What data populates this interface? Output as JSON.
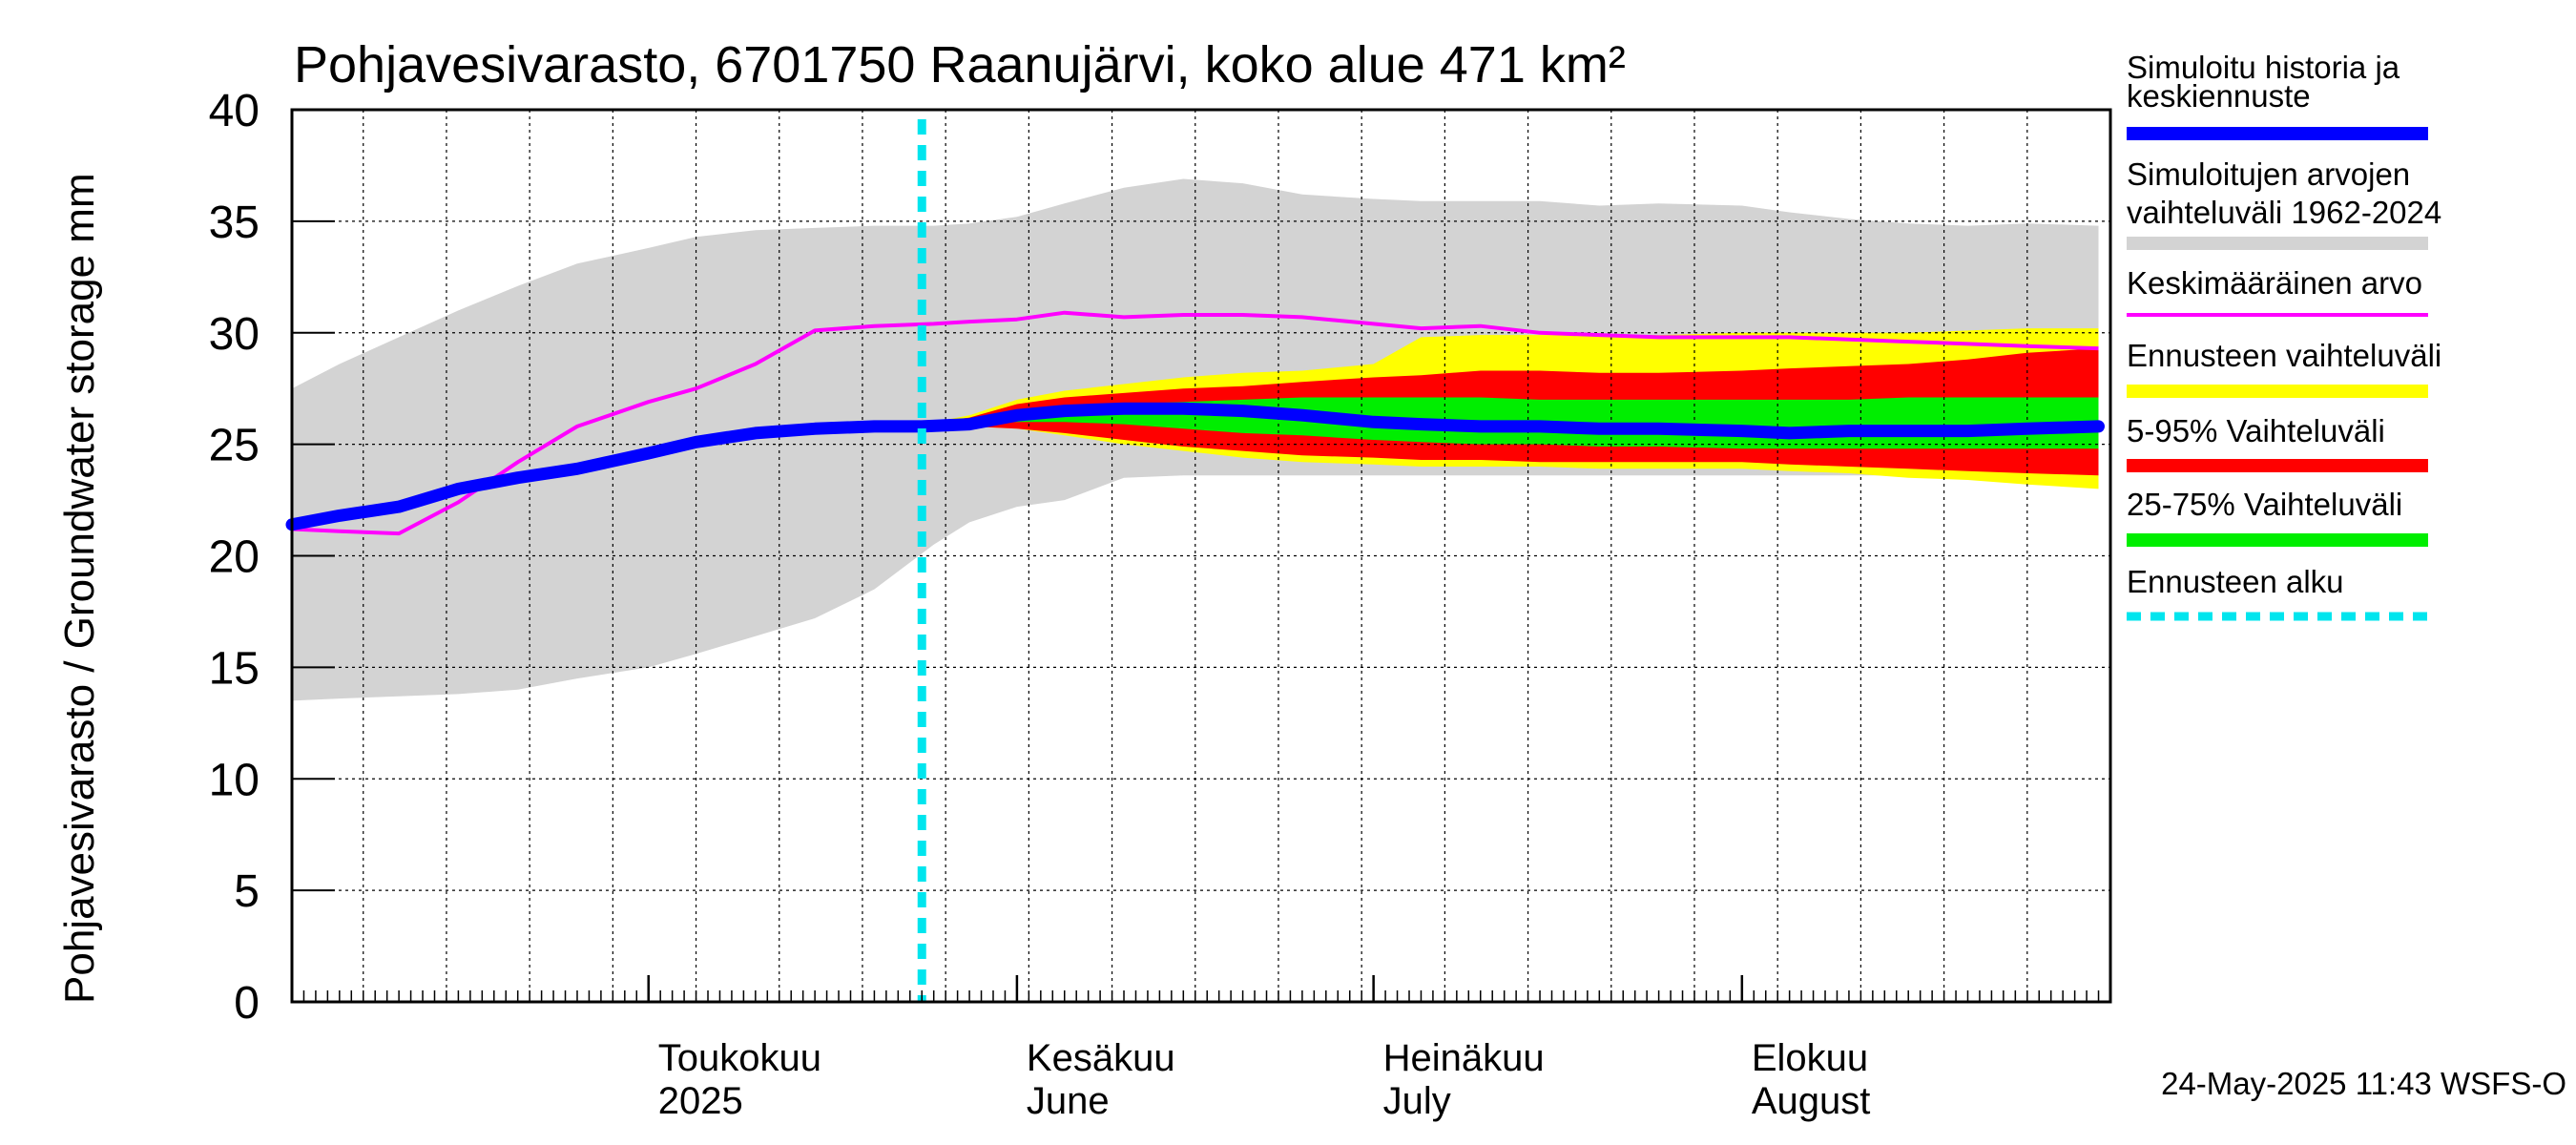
{
  "chart_data": {
    "type": "area",
    "title": "Pohjavesivarasto, 6701750 Raanujärvi, koko alue 471 km²",
    "ylabel": "Pohjavesivarasto / Groundwater storage   mm",
    "ylim": [
      0,
      40
    ],
    "yticks": [
      "0",
      "5",
      "10",
      "15",
      "20",
      "25",
      "30",
      "35",
      "40"
    ],
    "x_range": [
      "2025-04-01",
      "2025-08-31"
    ],
    "month_labels": [
      {
        "date": "2025-05-01",
        "line1": "Toukokuu",
        "line2": "2025"
      },
      {
        "date": "2025-06-01",
        "line1": "Kesäkuu",
        "line2": "June"
      },
      {
        "date": "2025-07-01",
        "line1": "Heinäkuu",
        "line2": "July"
      },
      {
        "date": "2025-08-01",
        "line1": "Elokuu",
        "line2": "August"
      }
    ],
    "forecast_start": "2025-05-24",
    "footer": "24-May-2025 11:43 WSFS-O",
    "series": [
      {
        "key": "range",
        "name": "Simuloitujen arvojen vaihteluväli 1962-2024",
        "kind": "band",
        "color": "#d3d3d3",
        "x": [
          "2025-04-01",
          "2025-04-05",
          "2025-04-10",
          "2025-04-15",
          "2025-04-20",
          "2025-04-25",
          "2025-05-01",
          "2025-05-05",
          "2025-05-10",
          "2025-05-15",
          "2025-05-20",
          "2025-05-25",
          "2025-05-28",
          "2025-06-01",
          "2025-06-05",
          "2025-06-10",
          "2025-06-15",
          "2025-06-20",
          "2025-06-25",
          "2025-07-01",
          "2025-07-05",
          "2025-07-10",
          "2025-07-15",
          "2025-07-20",
          "2025-07-25",
          "2025-08-01",
          "2025-08-05",
          "2025-08-10",
          "2025-08-15",
          "2025-08-20",
          "2025-08-25",
          "2025-08-31"
        ],
        "low": [
          13.5,
          13.6,
          13.7,
          13.8,
          14.0,
          14.5,
          15.0,
          15.6,
          16.4,
          17.2,
          18.5,
          20.5,
          21.5,
          22.2,
          22.5,
          23.5,
          23.6,
          23.6,
          23.6,
          23.6,
          23.6,
          23.6,
          23.6,
          23.6,
          23.6,
          23.6,
          23.6,
          23.6,
          23.6,
          23.6,
          23.6,
          23.6
        ],
        "high": [
          27.5,
          28.6,
          29.8,
          31.0,
          32.1,
          33.1,
          33.8,
          34.3,
          34.6,
          34.7,
          34.8,
          34.8,
          34.9,
          35.2,
          35.8,
          36.5,
          36.9,
          36.7,
          36.2,
          36.0,
          35.9,
          35.9,
          35.9,
          35.7,
          35.8,
          35.7,
          35.4,
          35.1,
          34.9,
          34.8,
          34.9,
          34.8
        ]
      },
      {
        "key": "forecast",
        "name": "Ennusteen vaihteluväli",
        "kind": "band",
        "color": "#ffff00",
        "x": [
          "2025-05-24",
          "2025-05-28",
          "2025-06-01",
          "2025-06-05",
          "2025-06-10",
          "2025-06-15",
          "2025-06-20",
          "2025-06-25",
          "2025-07-01",
          "2025-07-05",
          "2025-07-10",
          "2025-07-15",
          "2025-07-20",
          "2025-07-25",
          "2025-08-01",
          "2025-08-05",
          "2025-08-10",
          "2025-08-15",
          "2025-08-20",
          "2025-08-25",
          "2025-08-31"
        ],
        "low": [
          25.8,
          25.8,
          25.7,
          25.4,
          25.0,
          24.7,
          24.4,
          24.2,
          24.1,
          24.0,
          24.0,
          24.0,
          23.9,
          23.9,
          23.9,
          23.8,
          23.7,
          23.5,
          23.4,
          23.2,
          23.0
        ],
        "high": [
          25.9,
          26.3,
          27.0,
          27.4,
          27.7,
          28.0,
          28.2,
          28.3,
          28.6,
          29.8,
          29.9,
          29.9,
          29.9,
          29.9,
          30.0,
          30.0,
          30.0,
          30.0,
          30.1,
          30.2,
          30.2
        ]
      },
      {
        "key": "p5_95",
        "name": "5-95% Vaihteluväli",
        "kind": "band",
        "color": "#ff0000",
        "x": [
          "2025-05-24",
          "2025-05-28",
          "2025-06-01",
          "2025-06-05",
          "2025-06-10",
          "2025-06-15",
          "2025-06-20",
          "2025-06-25",
          "2025-07-01",
          "2025-07-05",
          "2025-07-10",
          "2025-07-15",
          "2025-07-20",
          "2025-07-25",
          "2025-08-01",
          "2025-08-05",
          "2025-08-10",
          "2025-08-15",
          "2025-08-20",
          "2025-08-25",
          "2025-08-31"
        ],
        "low": [
          25.8,
          25.8,
          25.7,
          25.5,
          25.2,
          24.9,
          24.7,
          24.5,
          24.4,
          24.3,
          24.3,
          24.2,
          24.2,
          24.2,
          24.2,
          24.1,
          24.0,
          23.9,
          23.8,
          23.7,
          23.6
        ],
        "high": [
          25.9,
          26.2,
          26.8,
          27.1,
          27.3,
          27.5,
          27.6,
          27.8,
          28.0,
          28.1,
          28.3,
          28.3,
          28.2,
          28.2,
          28.3,
          28.4,
          28.5,
          28.6,
          28.8,
          29.1,
          29.3
        ]
      },
      {
        "key": "p25_75",
        "name": "25-75% Vaihteluväli",
        "kind": "band",
        "color": "#00ee00",
        "x": [
          "2025-05-24",
          "2025-05-28",
          "2025-06-01",
          "2025-06-05",
          "2025-06-10",
          "2025-06-15",
          "2025-06-20",
          "2025-06-25",
          "2025-07-01",
          "2025-07-05",
          "2025-07-10",
          "2025-07-15",
          "2025-07-20",
          "2025-07-25",
          "2025-08-01",
          "2025-08-05",
          "2025-08-10",
          "2025-08-15",
          "2025-08-20",
          "2025-08-25",
          "2025-08-31"
        ],
        "low": [
          25.8,
          25.9,
          26.0,
          26.0,
          25.9,
          25.7,
          25.5,
          25.4,
          25.2,
          25.1,
          25.0,
          25.0,
          24.9,
          24.9,
          24.8,
          24.8,
          24.8,
          24.8,
          24.8,
          24.8,
          24.8
        ],
        "high": [
          25.9,
          26.1,
          26.5,
          26.7,
          26.8,
          26.9,
          27.0,
          27.1,
          27.1,
          27.1,
          27.1,
          27.0,
          27.0,
          27.0,
          27.0,
          27.0,
          27.0,
          27.1,
          27.1,
          27.1,
          27.1
        ]
      },
      {
        "key": "mean",
        "name": "Keskimääräinen arvo",
        "kind": "line",
        "color": "#ff00ff",
        "x": [
          "2025-04-01",
          "2025-04-05",
          "2025-04-10",
          "2025-04-15",
          "2025-04-20",
          "2025-04-25",
          "2025-05-01",
          "2025-05-05",
          "2025-05-10",
          "2025-05-15",
          "2025-05-20",
          "2025-05-25",
          "2025-05-28",
          "2025-06-01",
          "2025-06-05",
          "2025-06-10",
          "2025-06-15",
          "2025-06-20",
          "2025-06-25",
          "2025-07-01",
          "2025-07-05",
          "2025-07-10",
          "2025-07-15",
          "2025-07-20",
          "2025-07-25",
          "2025-08-01",
          "2025-08-05",
          "2025-08-10",
          "2025-08-15",
          "2025-08-20",
          "2025-08-25",
          "2025-08-31"
        ],
        "y": [
          21.2,
          21.1,
          21.0,
          22.4,
          24.2,
          25.8,
          26.9,
          27.5,
          28.6,
          30.1,
          30.3,
          30.4,
          30.5,
          30.6,
          30.9,
          30.7,
          30.8,
          30.8,
          30.7,
          30.4,
          30.2,
          30.3,
          30.0,
          29.9,
          29.8,
          29.8,
          29.8,
          29.7,
          29.6,
          29.5,
          29.4,
          29.3
        ]
      },
      {
        "key": "sim",
        "name": "Simuloitu historia ja keskiennuste",
        "kind": "line",
        "color": "#0000ff",
        "x": [
          "2025-04-01",
          "2025-04-05",
          "2025-04-10",
          "2025-04-15",
          "2025-04-20",
          "2025-04-25",
          "2025-05-01",
          "2025-05-05",
          "2025-05-10",
          "2025-05-15",
          "2025-05-20",
          "2025-05-24",
          "2025-05-28",
          "2025-06-01",
          "2025-06-05",
          "2025-06-10",
          "2025-06-15",
          "2025-06-20",
          "2025-06-25",
          "2025-07-01",
          "2025-07-05",
          "2025-07-10",
          "2025-07-15",
          "2025-07-20",
          "2025-07-25",
          "2025-08-01",
          "2025-08-05",
          "2025-08-10",
          "2025-08-15",
          "2025-08-20",
          "2025-08-25",
          "2025-08-31"
        ],
        "y": [
          21.4,
          21.8,
          22.2,
          23.0,
          23.5,
          23.9,
          24.6,
          25.1,
          25.5,
          25.7,
          25.8,
          25.8,
          25.9,
          26.3,
          26.5,
          26.6,
          26.6,
          26.5,
          26.3,
          26.0,
          25.9,
          25.8,
          25.8,
          25.7,
          25.7,
          25.6,
          25.5,
          25.6,
          25.6,
          25.6,
          25.7,
          25.8
        ]
      }
    ],
    "legend": [
      {
        "key": "sim",
        "lines": [
          "Simuloitu historia ja",
          "keskiennuste"
        ],
        "color": "#0000ff",
        "style": "solid"
      },
      {
        "key": "range",
        "lines": [
          "Simuloitujen arvojen",
          "vaihteluväli 1962-2024"
        ],
        "color": "#d3d3d3",
        "style": "solid"
      },
      {
        "key": "mean",
        "lines": [
          "Keskimääräinen arvo"
        ],
        "color": "#ff00ff",
        "style": "thin"
      },
      {
        "key": "forecast",
        "lines": [
          "Ennusteen vaihteluväli"
        ],
        "color": "#ffff00",
        "style": "solid"
      },
      {
        "key": "p5_95",
        "lines": [
          "5-95% Vaihteluväli"
        ],
        "color": "#ff0000",
        "style": "solid"
      },
      {
        "key": "p25_75",
        "lines": [
          "25-75% Vaihteluväli"
        ],
        "color": "#00ee00",
        "style": "solid"
      },
      {
        "key": "start",
        "lines": [
          "Ennusteen alku"
        ],
        "color": "#00e5ee",
        "style": "dashed"
      }
    ]
  }
}
